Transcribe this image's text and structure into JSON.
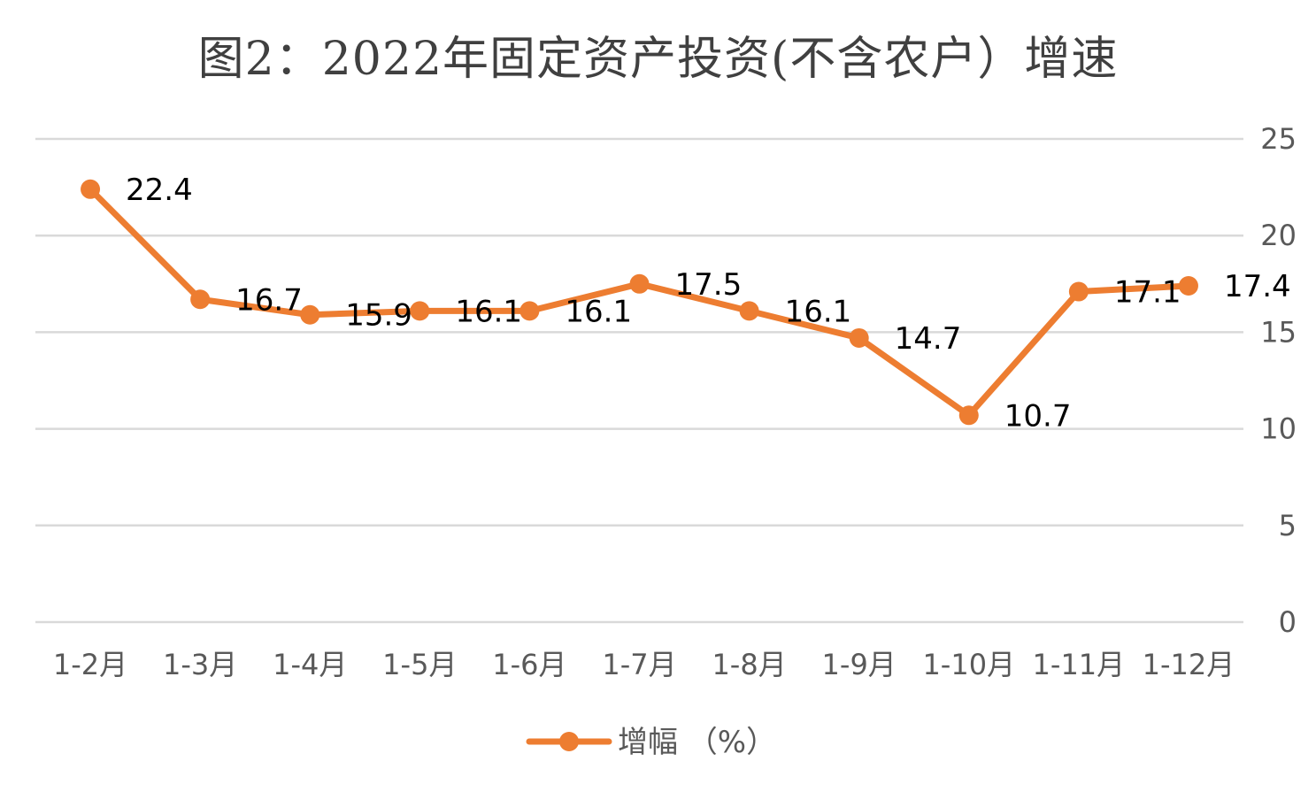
{
  "chart_data": {
    "type": "line",
    "title": "图2：2022年固定资产投资(不含农户）增速",
    "categories": [
      "1-2月",
      "1-3月",
      "1-4月",
      "1-5月",
      "1-6月",
      "1-7月",
      "1-8月",
      "1-9月",
      "1-10月",
      "1-11月",
      "1-12月"
    ],
    "series": [
      {
        "name": "增幅 （%）",
        "values": [
          22.4,
          16.7,
          15.9,
          16.1,
          16.1,
          17.5,
          16.1,
          14.7,
          10.7,
          17.1,
          17.4
        ],
        "labels": [
          "22.4",
          "16.7",
          "15.9",
          "16.1",
          "16.1",
          "17.5",
          "16.1",
          "14.7",
          "10.7",
          "17.1",
          "17.4"
        ],
        "color": "#ED7D31"
      }
    ],
    "yticks": [
      "0",
      "5",
      "10",
      "15",
      "20",
      "25"
    ],
    "ylim": [
      0,
      25
    ],
    "yaxis_position": "right",
    "grid": true,
    "legend_position": "bottom",
    "gridline_color": "#D9D9D9"
  }
}
